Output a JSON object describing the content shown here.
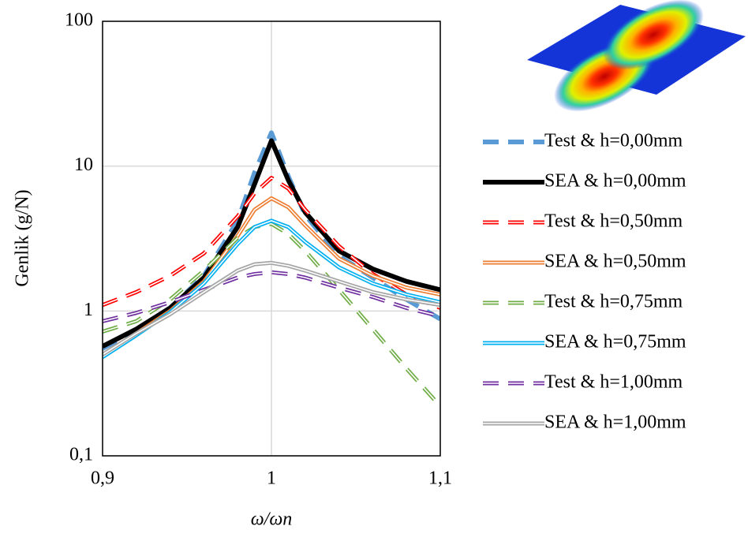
{
  "chart_data": {
    "type": "line",
    "x_label": "ω/ωn",
    "y_label": "Genlik (g/N)",
    "log_y": true,
    "grid": true,
    "legend": "right",
    "x": [
      0.9,
      0.92,
      0.94,
      0.96,
      0.98,
      0.99,
      1.0,
      1.01,
      1.02,
      1.04,
      1.06,
      1.08,
      1.1
    ],
    "xlim": [
      0.9,
      1.1
    ],
    "xticks": [
      {
        "value": 0.9,
        "label": "0,9"
      },
      1,
      {
        "value": 1.1,
        "label": "1,1"
      }
    ],
    "ylim": [
      0.1,
      100
    ],
    "yticks": [
      {
        "value": 0.1,
        "label": "0,1"
      },
      1,
      10,
      100
    ],
    "series": [
      {
        "name": "Test & h=0,00mm",
        "color": "#5b9bd5",
        "style": "dashed",
        "double": false,
        "values": [
          0.55,
          0.73,
          1.05,
          1.75,
          4.2,
          9,
          17,
          8.5,
          4.6,
          2.4,
          1.7,
          1.2,
          0.88
        ]
      },
      {
        "name": "SEA & h=0,00mm",
        "color": "#000000",
        "style": "solid",
        "double": false,
        "values": [
          0.57,
          0.75,
          1.05,
          1.7,
          3.8,
          7.5,
          15,
          8,
          4.8,
          2.6,
          1.95,
          1.6,
          1.4
        ]
      },
      {
        "name": "Test & h=0,50mm",
        "color": "#ff0000",
        "style": "dashed",
        "double": true,
        "values": [
          1.1,
          1.35,
          1.75,
          2.5,
          4.5,
          6.5,
          8.3,
          7,
          5,
          2.8,
          1.8,
          1.3,
          1.05
        ]
      },
      {
        "name": "SEA & h=0,50mm",
        "color": "#ed7d31",
        "style": "solid",
        "double": true,
        "values": [
          0.5,
          0.7,
          1.0,
          1.6,
          3.3,
          5,
          6,
          5.2,
          3.9,
          2.3,
          1.75,
          1.45,
          1.3
        ]
      },
      {
        "name": "Test & h=0,75mm",
        "color": "#70ad47",
        "style": "dashed",
        "double": true,
        "values": [
          0.72,
          0.85,
          1.2,
          1.9,
          3.2,
          3.8,
          4,
          3.4,
          2.6,
          1.4,
          0.75,
          0.4,
          0.22
        ]
      },
      {
        "name": "SEA & h=0,75mm",
        "color": "#00b0f0",
        "style": "solid",
        "double": true,
        "values": [
          0.48,
          0.68,
          0.98,
          1.55,
          2.9,
          3.8,
          4.2,
          3.8,
          3,
          2,
          1.55,
          1.3,
          1.15
        ]
      },
      {
        "name": "Test & h=1,00mm",
        "color": "#7030a0",
        "style": "dashed",
        "double": true,
        "values": [
          0.85,
          0.97,
          1.15,
          1.4,
          1.7,
          1.8,
          1.85,
          1.8,
          1.7,
          1.45,
          1.25,
          1.05,
          0.92
        ]
      },
      {
        "name": "SEA & h=1,00mm",
        "color": "#a5a5a5",
        "style": "solid",
        "double": true,
        "values": [
          0.5,
          0.7,
          0.95,
          1.35,
          1.9,
          2.1,
          2.15,
          2.05,
          1.9,
          1.6,
          1.35,
          1.2,
          1.1
        ]
      }
    ]
  }
}
